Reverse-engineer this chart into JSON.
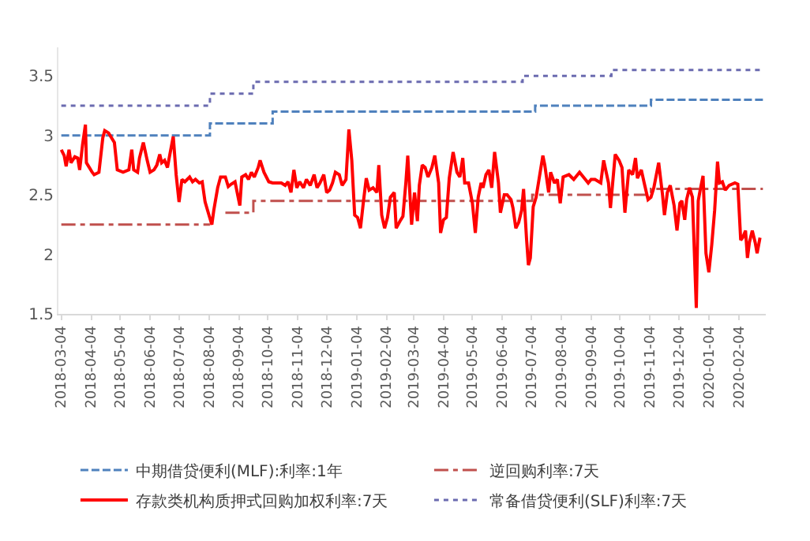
{
  "chart_data": {
    "type": "line",
    "xlim": [
      "2018-03-01",
      "2020-03-03"
    ],
    "ylim": [
      1.5,
      3.74
    ],
    "yticks": [
      1.5,
      2,
      2.5,
      3,
      3.5
    ],
    "xticks": [
      "2018-03-04",
      "2018-04-04",
      "2018-05-04",
      "2018-06-04",
      "2018-07-04",
      "2018-08-04",
      "2018-09-04",
      "2018-10-04",
      "2018-11-04",
      "2018-12-04",
      "2019-01-04",
      "2019-02-04",
      "2019-03-04",
      "2019-04-04",
      "2019-05-04",
      "2019-06-04",
      "2019-07-04",
      "2019-08-04",
      "2019-09-04",
      "2019-10-04",
      "2019-11-04",
      "2019-12-04",
      "2020-01-04",
      "2020-02-04"
    ],
    "grid": false,
    "legend": "bottom",
    "series": [
      {
        "name": "中期借贷便利(MLF):利率:1年",
        "type": "step",
        "color": "#4f81bd",
        "line_style": "dashed",
        "x": [
          "2018-03-04",
          "2018-08-05",
          "2018-10-09",
          "2019-07-08",
          "2019-11-05",
          "2020-02-29"
        ],
        "values": [
          3.0,
          3.1,
          3.2,
          3.25,
          3.3,
          3.3
        ]
      },
      {
        "name": "逆回购利率:7天",
        "type": "step",
        "color": "#c0504d",
        "line_style": "dashdot",
        "x": [
          "2018-03-04",
          "2018-08-05",
          "2018-08-06",
          "2018-08-21",
          "2018-09-19",
          "2019-07-05",
          "2019-11-05",
          "2020-02-29"
        ],
        "values": [
          2.25,
          2.25,
          null,
          2.35,
          2.45,
          2.5,
          2.55,
          2.55
        ]
      },
      {
        "name": "存款类机构质押式回购加权利率:7天",
        "type": "line",
        "color": "#ff0000",
        "line_style": "solid",
        "x": [
          "2018-03-04",
          "2018-03-07",
          "2018-03-09",
          "2018-03-12",
          "2018-03-14",
          "2018-03-18",
          "2018-03-21",
          "2018-03-23",
          "2018-03-26",
          "2018-03-29",
          "2018-03-30",
          "2018-04-02",
          "2018-04-05",
          "2018-04-07",
          "2018-04-12",
          "2018-04-16",
          "2018-04-18",
          "2018-04-22",
          "2018-04-25",
          "2018-04-28",
          "2018-05-01",
          "2018-05-07",
          "2018-05-13",
          "2018-05-16",
          "2018-05-18",
          "2018-05-22",
          "2018-05-24",
          "2018-05-28",
          "2018-06-01",
          "2018-06-04",
          "2018-06-08",
          "2018-06-11",
          "2018-06-14",
          "2018-06-16",
          "2018-06-19",
          "2018-06-22",
          "2018-06-24",
          "2018-06-28",
          "2018-07-01",
          "2018-07-04",
          "2018-07-07",
          "2018-07-10",
          "2018-07-15",
          "2018-07-18",
          "2018-07-21",
          "2018-07-25",
          "2018-07-28",
          "2018-07-31",
          "2018-08-04",
          "2018-08-07",
          "2018-08-09",
          "2018-08-13",
          "2018-08-16",
          "2018-08-21",
          "2018-08-24",
          "2018-08-27",
          "2018-08-31",
          "2018-09-05",
          "2018-09-07",
          "2018-09-11",
          "2018-09-14",
          "2018-09-17",
          "2018-09-20",
          "2018-09-24",
          "2018-09-26",
          "2018-09-30",
          "2018-10-05",
          "2018-10-09",
          "2018-10-13",
          "2018-10-18",
          "2018-10-22",
          "2018-10-25",
          "2018-10-28",
          "2018-10-31",
          "2018-11-03",
          "2018-11-06",
          "2018-11-10",
          "2018-11-13",
          "2018-11-17",
          "2018-11-21",
          "2018-11-24",
          "2018-11-27",
          "2018-12-01",
          "2018-12-04",
          "2018-12-07",
          "2018-12-10",
          "2018-12-13",
          "2018-12-17",
          "2018-12-20",
          "2018-12-24",
          "2018-12-27",
          "2018-12-30",
          "2019-01-02",
          "2019-01-05",
          "2019-01-08",
          "2019-01-11",
          "2019-01-14",
          "2019-01-17",
          "2019-01-21",
          "2019-01-25",
          "2019-01-27",
          "2019-01-30",
          "2019-02-02",
          "2019-02-05",
          "2019-02-08",
          "2019-02-12",
          "2019-02-14",
          "2019-02-18",
          "2019-02-21",
          "2019-02-24",
          "2019-02-26",
          "2019-03-02",
          "2019-03-05",
          "2019-03-08",
          "2019-03-10",
          "2019-03-13",
          "2019-03-16",
          "2019-03-19",
          "2019-03-23",
          "2019-03-26",
          "2019-03-30",
          "2019-04-01",
          "2019-04-04",
          "2019-04-07",
          "2019-04-10",
          "2019-04-14",
          "2019-04-18",
          "2019-04-21",
          "2019-04-24",
          "2019-04-26",
          "2019-04-30",
          "2019-05-04",
          "2019-05-07",
          "2019-05-10",
          "2019-05-13",
          "2019-05-15",
          "2019-05-18",
          "2019-05-21",
          "2019-05-24",
          "2019-05-27",
          "2019-05-31",
          "2019-06-02",
          "2019-06-06",
          "2019-06-09",
          "2019-06-13",
          "2019-06-15",
          "2019-06-18",
          "2019-06-21",
          "2019-06-24",
          "2019-06-26",
          "2019-06-29",
          "2019-07-01",
          "2019-07-03",
          "2019-07-06",
          "2019-07-09",
          "2019-07-12",
          "2019-07-16",
          "2019-07-18",
          "2019-07-22",
          "2019-07-24",
          "2019-07-28",
          "2019-07-31",
          "2019-08-03",
          "2019-08-06",
          "2019-08-12",
          "2019-08-17",
          "2019-08-23",
          "2019-08-27",
          "2019-09-01",
          "2019-09-04",
          "2019-09-08",
          "2019-09-14",
          "2019-09-17",
          "2019-09-22",
          "2019-09-24",
          "2019-09-29",
          "2019-10-03",
          "2019-10-06",
          "2019-10-09",
          "2019-10-13",
          "2019-10-17",
          "2019-10-20",
          "2019-10-22",
          "2019-10-26",
          "2019-10-29",
          "2019-11-02",
          "2019-11-05",
          "2019-11-08",
          "2019-11-13",
          "2019-11-17",
          "2019-11-19",
          "2019-11-22",
          "2019-11-25",
          "2019-11-29",
          "2019-12-02",
          "2019-12-05",
          "2019-12-07",
          "2019-12-10",
          "2019-12-12",
          "2019-12-15",
          "2019-12-18",
          "2019-12-22",
          "2019-12-24",
          "2019-12-26",
          "2019-12-29",
          "2020-01-01",
          "2020-01-04",
          "2020-01-07",
          "2020-01-10",
          "2020-01-13",
          "2020-01-15",
          "2020-01-18",
          "2020-01-21",
          "2020-01-25",
          "2020-01-31",
          "2020-02-03",
          "2020-02-06",
          "2020-02-08",
          "2020-02-11",
          "2020-02-13",
          "2020-02-15",
          "2020-02-18",
          "2020-02-21",
          "2020-02-23",
          "2020-02-26"
        ],
        "values": [
          2.88,
          2.83,
          2.74,
          2.88,
          2.77,
          2.82,
          2.81,
          2.71,
          2.92,
          3.09,
          2.77,
          2.73,
          2.69,
          2.67,
          2.69,
          2.98,
          3.04,
          3.02,
          2.98,
          2.94,
          2.71,
          2.69,
          2.71,
          2.88,
          2.71,
          2.69,
          2.81,
          2.94,
          2.79,
          2.69,
          2.71,
          2.75,
          2.84,
          2.77,
          2.79,
          2.73,
          2.82,
          2.99,
          2.67,
          2.44,
          2.63,
          2.61,
          2.65,
          2.61,
          2.63,
          2.6,
          2.61,
          2.44,
          2.33,
          2.25,
          2.37,
          2.56,
          2.65,
          2.65,
          2.57,
          2.59,
          2.61,
          2.41,
          2.65,
          2.67,
          2.63,
          2.69,
          2.65,
          2.73,
          2.79,
          2.69,
          2.61,
          2.6,
          2.6,
          2.6,
          2.58,
          2.61,
          2.52,
          2.71,
          2.56,
          2.61,
          2.56,
          2.63,
          2.58,
          2.67,
          2.56,
          2.6,
          2.67,
          2.52,
          2.54,
          2.6,
          2.69,
          2.67,
          2.58,
          2.63,
          3.05,
          2.79,
          2.33,
          2.31,
          2.22,
          2.44,
          2.64,
          2.54,
          2.56,
          2.52,
          2.75,
          2.33,
          2.22,
          2.31,
          2.48,
          2.52,
          2.22,
          2.28,
          2.32,
          2.6,
          2.83,
          2.25,
          2.52,
          2.28,
          2.58,
          2.75,
          2.73,
          2.65,
          2.73,
          2.83,
          2.6,
          2.18,
          2.29,
          2.31,
          2.64,
          2.86,
          2.69,
          2.65,
          2.81,
          2.6,
          2.6,
          2.43,
          2.18,
          2.48,
          2.6,
          2.56,
          2.67,
          2.71,
          2.56,
          2.86,
          2.6,
          2.35,
          2.5,
          2.5,
          2.46,
          2.39,
          2.22,
          2.27,
          2.37,
          2.55,
          2.14,
          1.91,
          1.97,
          2.4,
          2.48,
          2.63,
          2.83,
          2.75,
          2.52,
          2.69,
          2.6,
          2.63,
          2.43,
          2.65,
          2.67,
          2.63,
          2.69,
          2.65,
          2.6,
          2.63,
          2.63,
          2.6,
          2.79,
          2.6,
          2.39,
          2.84,
          2.79,
          2.73,
          2.35,
          2.71,
          2.67,
          2.81,
          2.64,
          2.71,
          2.6,
          2.46,
          2.48,
          2.56,
          2.77,
          2.5,
          2.33,
          2.52,
          2.58,
          2.41,
          2.2,
          2.43,
          2.45,
          2.29,
          2.46,
          2.56,
          2.48,
          1.55,
          2.45,
          2.54,
          2.66,
          2.01,
          1.85,
          2.08,
          2.37,
          2.78,
          2.6,
          2.61,
          2.54,
          2.58,
          2.6,
          2.59,
          2.12,
          2.14,
          2.2,
          1.97,
          2.1,
          2.2,
          2.1,
          2.01,
          2.14
        ]
      },
      {
        "name": "常备借贷便利(SLF)利率:7天",
        "type": "step",
        "color": "#6b6bb0",
        "line_style": "dotted",
        "x": [
          "2018-03-04",
          "2018-08-05",
          "2018-09-19",
          "2019-06-25",
          "2019-09-25",
          "2020-02-29"
        ],
        "values": [
          3.25,
          3.35,
          3.45,
          3.5,
          3.55,
          3.55
        ]
      }
    ]
  }
}
